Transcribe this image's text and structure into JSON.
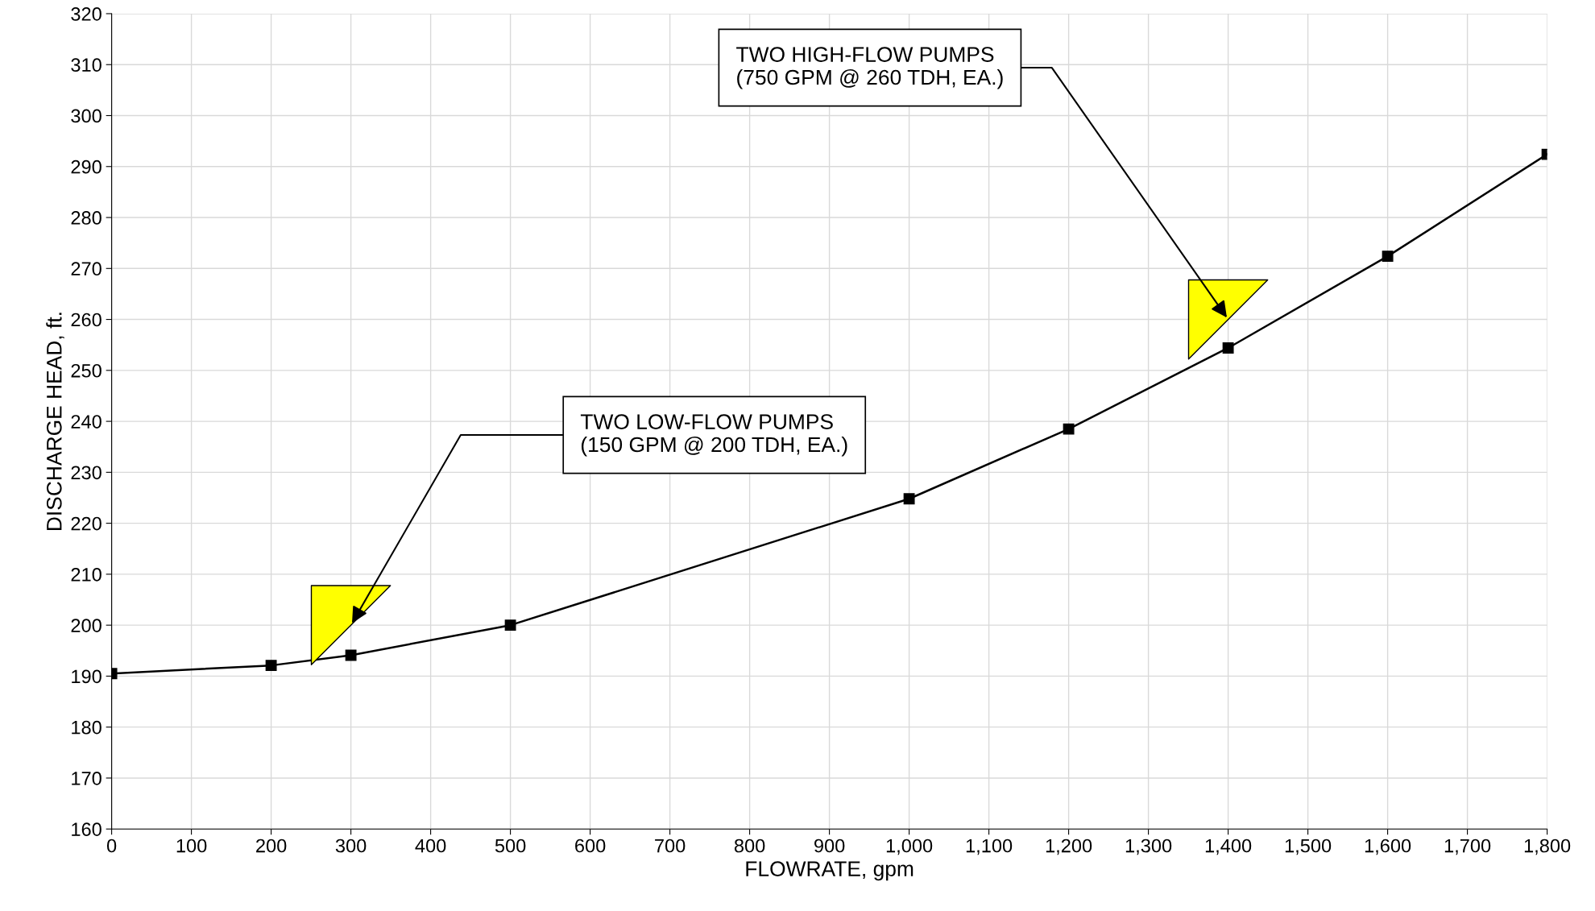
{
  "chart_data": {
    "type": "line",
    "xlabel": "FLOWRATE, gpm",
    "ylabel": "DISCHARGE HEAD, ft.",
    "x": [
      0,
      200,
      300,
      500,
      1000,
      1200,
      1400,
      1600,
      1800
    ],
    "series": [
      {
        "type": "line",
        "color": "#000000",
        "marker": "square",
        "values": [
          190.5,
          192.1,
          194.1,
          200,
          224.8,
          238.5,
          254.4,
          272.4,
          292.4
        ]
      },
      {
        "type": "scatter",
        "color": "#ffff00",
        "marker": "triangle",
        "x": [
          300,
          1400
        ],
        "values": [
          200,
          260
        ]
      }
    ],
    "xlim": [
      0,
      1800
    ],
    "xticks": [
      0,
      100,
      200,
      300,
      400,
      500,
      600,
      700,
      800,
      900,
      {
        "value": 1000,
        "label": "1,000"
      },
      {
        "value": 1100,
        "label": "1,100"
      },
      {
        "value": 1200,
        "label": "1,200"
      },
      {
        "value": 1300,
        "label": "1,300"
      },
      {
        "value": 1400,
        "label": "1,400"
      },
      {
        "value": 1500,
        "label": "1,500"
      },
      {
        "value": 1600,
        "label": "1,600"
      },
      {
        "value": 1700,
        "label": "1,700"
      },
      {
        "value": 1800,
        "label": "1,800"
      }
    ],
    "ylim": [
      160,
      320
    ],
    "yticks": [
      160,
      170,
      180,
      190,
      200,
      210,
      220,
      230,
      240,
      250,
      260,
      270,
      280,
      290,
      300,
      310,
      320
    ],
    "grid": true,
    "line_style": "solid",
    "annotations": [
      {
        "text": "TWO LOW-FLOW PUMPS\n(150 GPM @ 200 TDH, EA.)",
        "x": 300,
        "y": 200
      },
      {
        "text": "TWO HIGH-FLOW PUMPS\n(750 GPM @ 260 TDH, EA.)",
        "x": 1400,
        "y": 260
      }
    ]
  }
}
